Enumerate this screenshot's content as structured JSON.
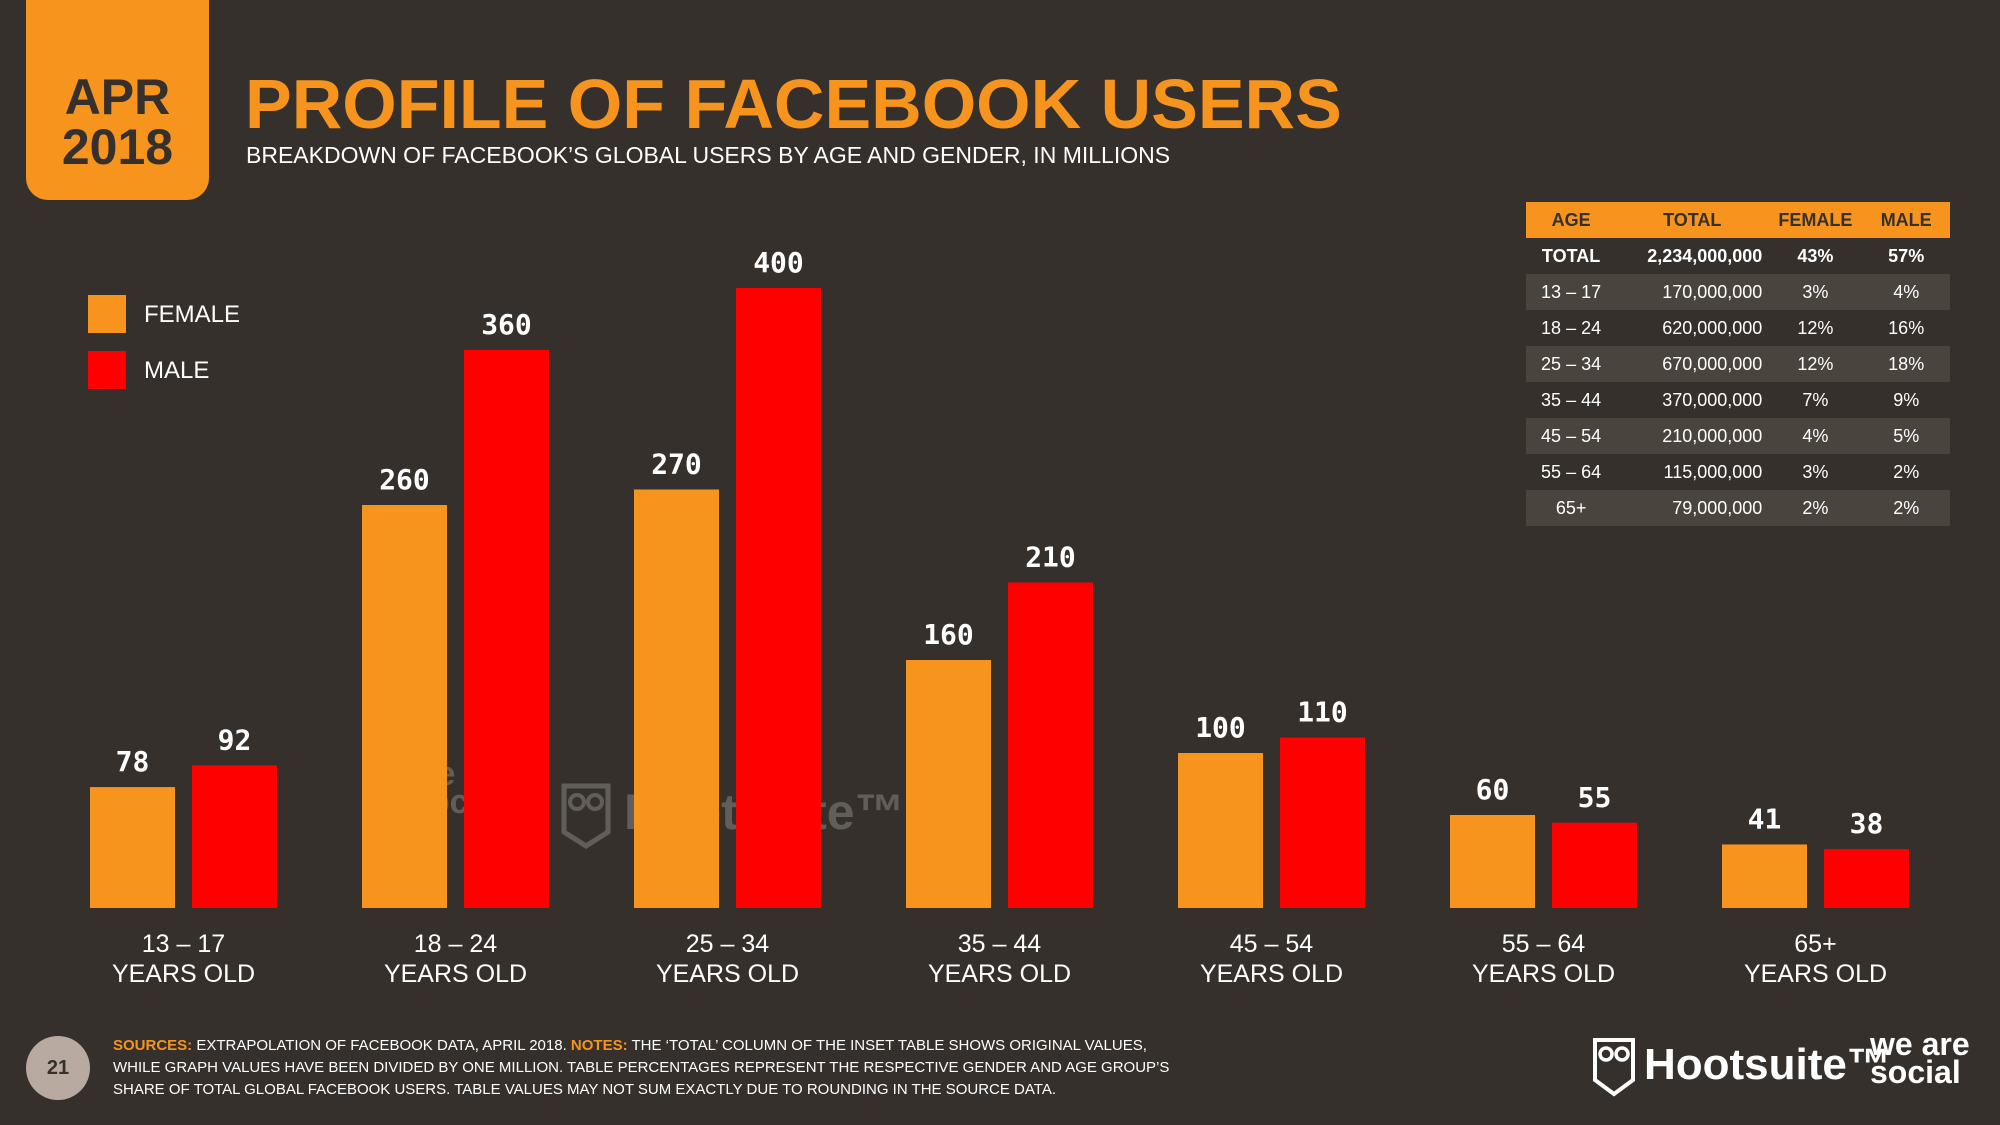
{
  "header": {
    "month": "APR",
    "year": "2018",
    "title": "PROFILE OF FACEBOOK USERS",
    "subtitle": "BREAKDOWN OF FACEBOOK’S GLOBAL USERS BY AGE AND GENDER, IN MILLIONS"
  },
  "colors": {
    "female": "#f7941d",
    "male": "#ff0000",
    "background": "#35302c",
    "accent": "#f7941d"
  },
  "chart_data": {
    "type": "bar",
    "title": "PROFILE OF FACEBOOK USERS",
    "categories": [
      [
        "13 – 17",
        "YEARS OLD"
      ],
      [
        "18 – 24",
        "YEARS OLD"
      ],
      [
        "25 – 34",
        "YEARS OLD"
      ],
      [
        "35 – 44",
        "YEARS OLD"
      ],
      [
        "45 – 54",
        "YEARS OLD"
      ],
      [
        "55 – 64",
        "YEARS OLD"
      ],
      [
        "65+",
        "YEARS OLD"
      ]
    ],
    "series": [
      {
        "name": "FEMALE",
        "color": "#f7941d",
        "values": [
          78,
          260,
          270,
          160,
          100,
          60,
          41
        ]
      },
      {
        "name": "MALE",
        "color": "#ff0000",
        "values": [
          92,
          360,
          400,
          210,
          110,
          55,
          38
        ]
      }
    ],
    "ylim": [
      0,
      400
    ],
    "legend_position": "left",
    "grid": false,
    "inset_table": {
      "headers": [
        "AGE",
        "TOTAL",
        "FEMALE",
        "MALE"
      ],
      "rows": [
        [
          "TOTAL",
          "2,234,000,000",
          "43%",
          "57%"
        ],
        [
          "13 – 17",
          "170,000,000",
          "3%",
          "4%"
        ],
        [
          "18 – 24",
          "620,000,000",
          "12%",
          "16%"
        ],
        [
          "25 – 34",
          "670,000,000",
          "12%",
          "18%"
        ],
        [
          "35 – 44",
          "370,000,000",
          "7%",
          "9%"
        ],
        [
          "45 – 54",
          "210,000,000",
          "4%",
          "5%"
        ],
        [
          "55 – 64",
          "115,000,000",
          "3%",
          "2%"
        ],
        [
          "65+",
          "79,000,000",
          "2%",
          "2%"
        ]
      ]
    }
  },
  "legend": {
    "female_label": "FEMALE",
    "male_label": "MALE"
  },
  "watermark": {
    "was": "we are social",
    "hootsuite": "Hootsuite™"
  },
  "footer": {
    "sources_label": "SOURCES:",
    "sources_text": " EXTRAPOLATION OF FACEBOOK DATA, APRIL 2018. ",
    "notes_label": "NOTES:",
    "notes_text": " THE ‘TOTAL’ COLUMN OF THE INSET TABLE SHOWS ORIGINAL VALUES, WHILE GRAPH VALUES HAVE BEEN DIVIDED BY ONE MILLION. TABLE PERCENTAGES REPRESENT THE RESPECTIVE GENDER AND AGE GROUP’S SHARE OF TOTAL GLOBAL FACEBOOK USERS. TABLE VALUES MAY NOT SUM EXACTLY DUE TO ROUNDING IN THE SOURCE DATA.",
    "page_number": "21",
    "brand_hootsuite": "Hootsuite™",
    "brand_was": "we are social"
  }
}
